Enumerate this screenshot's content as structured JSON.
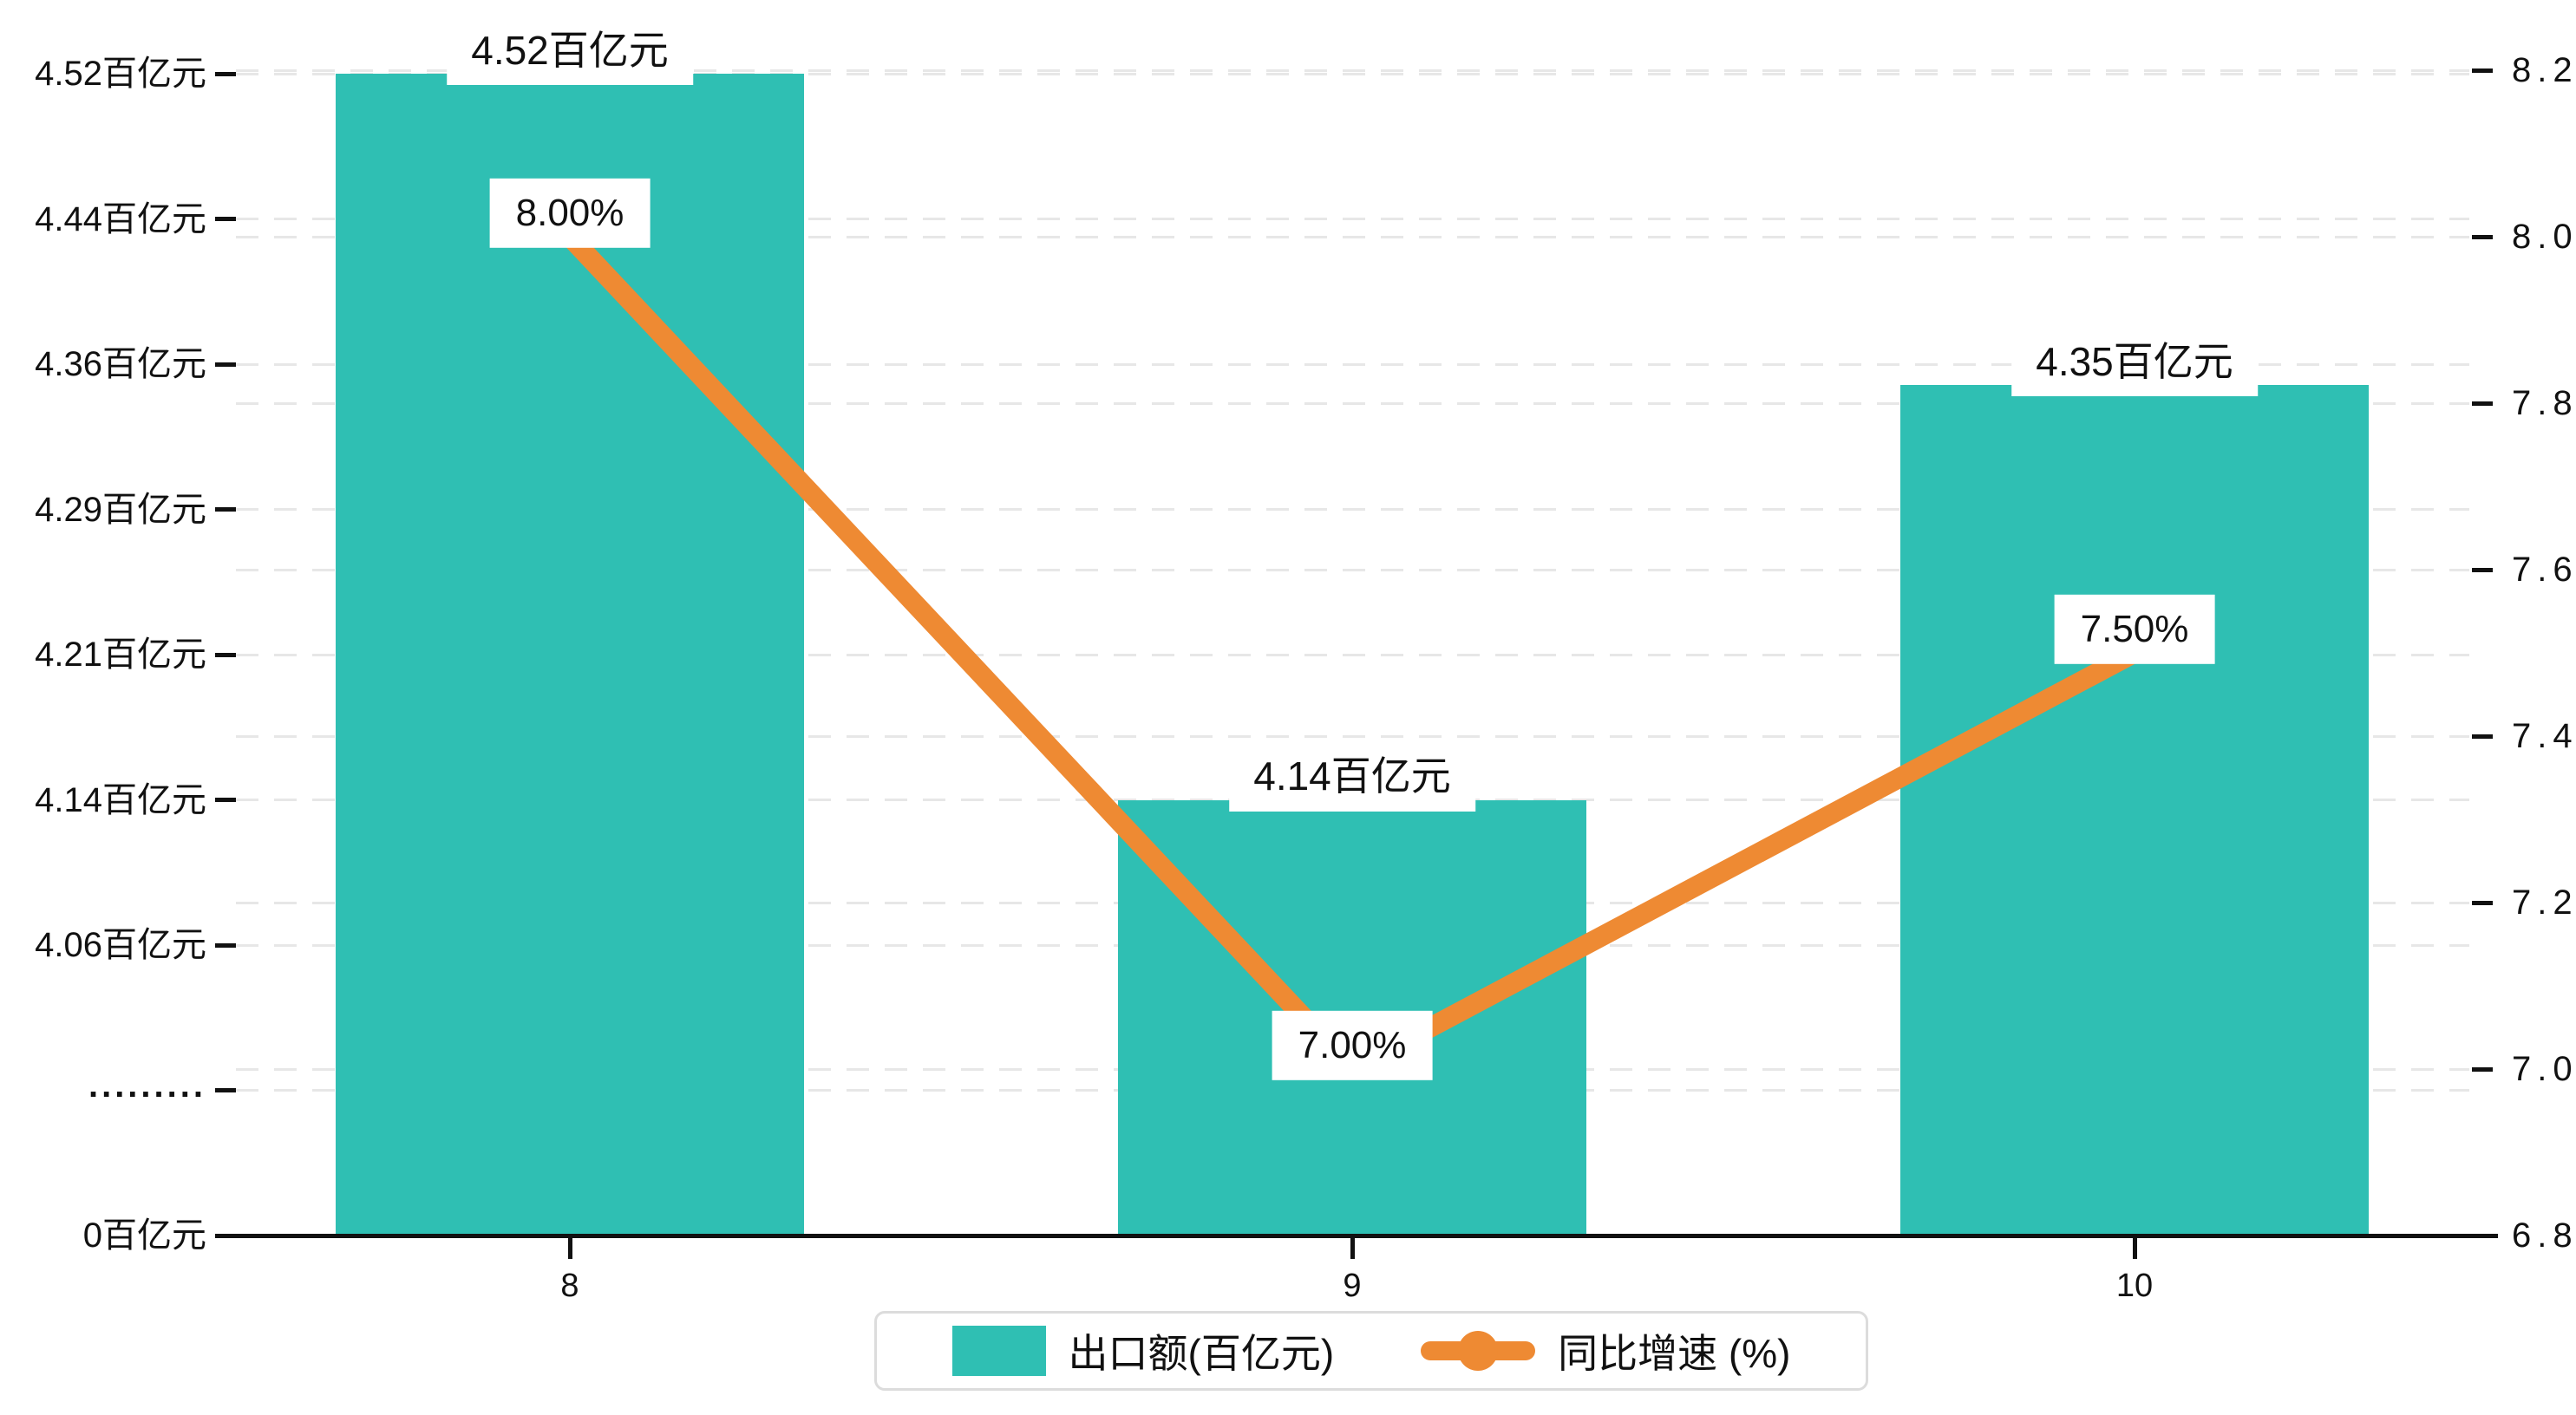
{
  "chart_data": {
    "type": "bar",
    "combo": "bar+line dual-axis",
    "categories": [
      "8",
      "9",
      "10"
    ],
    "series": [
      {
        "name": "出口额(百亿元)",
        "type": "bar",
        "axis": "left",
        "color": "#2fbfb3",
        "values": [
          4.52,
          4.14,
          4.35
        ],
        "data_labels": [
          "4.52百亿元",
          "4.14百亿元",
          "4.35百亿元"
        ]
      },
      {
        "name": "同比增速 (%)",
        "type": "line",
        "axis": "right",
        "color": "#ee8a33",
        "values": [
          8.0,
          7.0,
          7.5
        ],
        "data_labels": [
          "8.00%",
          "7.00%",
          "7.50%"
        ]
      }
    ],
    "left_axis": {
      "unit": "百亿元",
      "broken_axis": true,
      "tick_labels": [
        "4.52百亿元",
        "4.44百亿元",
        "4.36百亿元",
        "4.29百亿元",
        "4.21百亿元",
        "4.14百亿元",
        "4.06百亿元",
        ".........",
        "0百亿元"
      ],
      "tick_values": [
        4.52,
        4.44,
        4.36,
        4.29,
        4.21,
        4.14,
        4.06,
        null,
        0
      ]
    },
    "right_axis": {
      "tick_labels": [
        "8.2",
        "8.0",
        "7.8",
        "7.6",
        "7.4",
        "7.2",
        "7.0",
        "6.8"
      ],
      "tick_values": [
        8.2,
        8.0,
        7.8,
        7.6,
        7.4,
        7.2,
        7.0,
        6.8
      ],
      "min": 6.8,
      "max": 8.2
    },
    "x_axis": {
      "tick_labels": [
        "8",
        "9",
        "10"
      ]
    },
    "legend": {
      "position": "bottom",
      "items": [
        {
          "label": "出口额(百亿元)",
          "marker": "square",
          "color": "#2fbfb3"
        },
        {
          "label": "同比增速 (%)",
          "marker": "line-dot",
          "color": "#ee8a33"
        }
      ]
    },
    "grid": {
      "visible": true,
      "style": "dashed",
      "color": "#e7e7e7"
    },
    "colors": {
      "bar": "#2fbfb3",
      "line": "#ee8a33",
      "axis": "#111111",
      "label_bg": "#ffffff"
    }
  }
}
